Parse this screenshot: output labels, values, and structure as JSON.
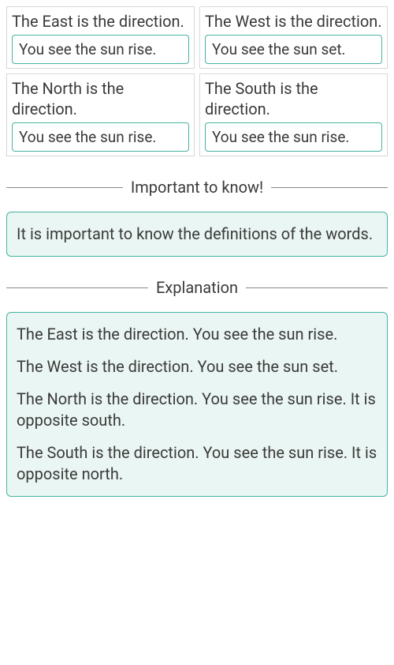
{
  "colors": {
    "teal_border": "#45b3a0",
    "teal_bg": "#eaf6f3",
    "gray_border": "#d8d8d8",
    "text": "#3a3a3a",
    "divider": "#888888"
  },
  "options": {
    "row1": [
      {
        "statement": "The East is the direction.",
        "answer": "You see the sun rise."
      },
      {
        "statement": "The West is the direction.",
        "answer": "You see the sun set."
      }
    ],
    "row2": [
      {
        "statement": "The North is the direction.",
        "answer": "You see the sun rise."
      },
      {
        "statement": "The South is the direction.",
        "answer": "You see the sun rise."
      }
    ]
  },
  "important_section": {
    "heading": "Important to know!",
    "body": "It is important to know the definitions of the words."
  },
  "explanation_section": {
    "heading": "Explanation",
    "paragraphs": [
      "The East is the direction. You see the sun rise.",
      "The West is the direction. You see the sun set.",
      "The North is the direction. You see the sun rise. It is opposite south.",
      "The South is the direction. You see the sun rise. It is opposite north."
    ]
  }
}
